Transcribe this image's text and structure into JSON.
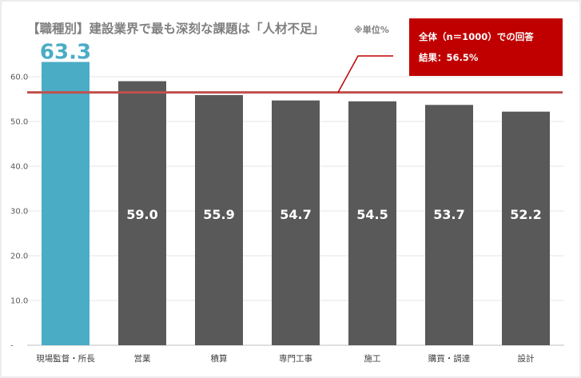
{
  "chart_data": {
    "type": "bar",
    "title": "【職種別】建設業界で最も深刻な課題は「人材不足」",
    "title_note": "※単位%",
    "categories": [
      "現場監督・所長",
      "営業",
      "積算",
      "専門工事",
      "施工",
      "購買・調達",
      "設計"
    ],
    "values": [
      63.3,
      59.0,
      55.9,
      54.7,
      54.5,
      53.7,
      52.2
    ],
    "value_labels": [
      "63.3",
      "59.0",
      "55.9",
      "54.7",
      "54.5",
      "53.7",
      "52.2"
    ],
    "ylim": [
      0,
      60
    ],
    "yticks": [
      "-",
      "10.0",
      "20.0",
      "30.0",
      "40.0",
      "50.0",
      "60.0"
    ],
    "grid": true,
    "reference_line": {
      "value": 56.5,
      "color": "#c0504d"
    },
    "callout": {
      "line1": "全体（n＝1000）での回答",
      "line2": "結果：56.5%",
      "background": "#c00000"
    },
    "colors": {
      "highlight": "#4bacc6",
      "bar": "#595959",
      "title": "#7f7f7f"
    }
  }
}
